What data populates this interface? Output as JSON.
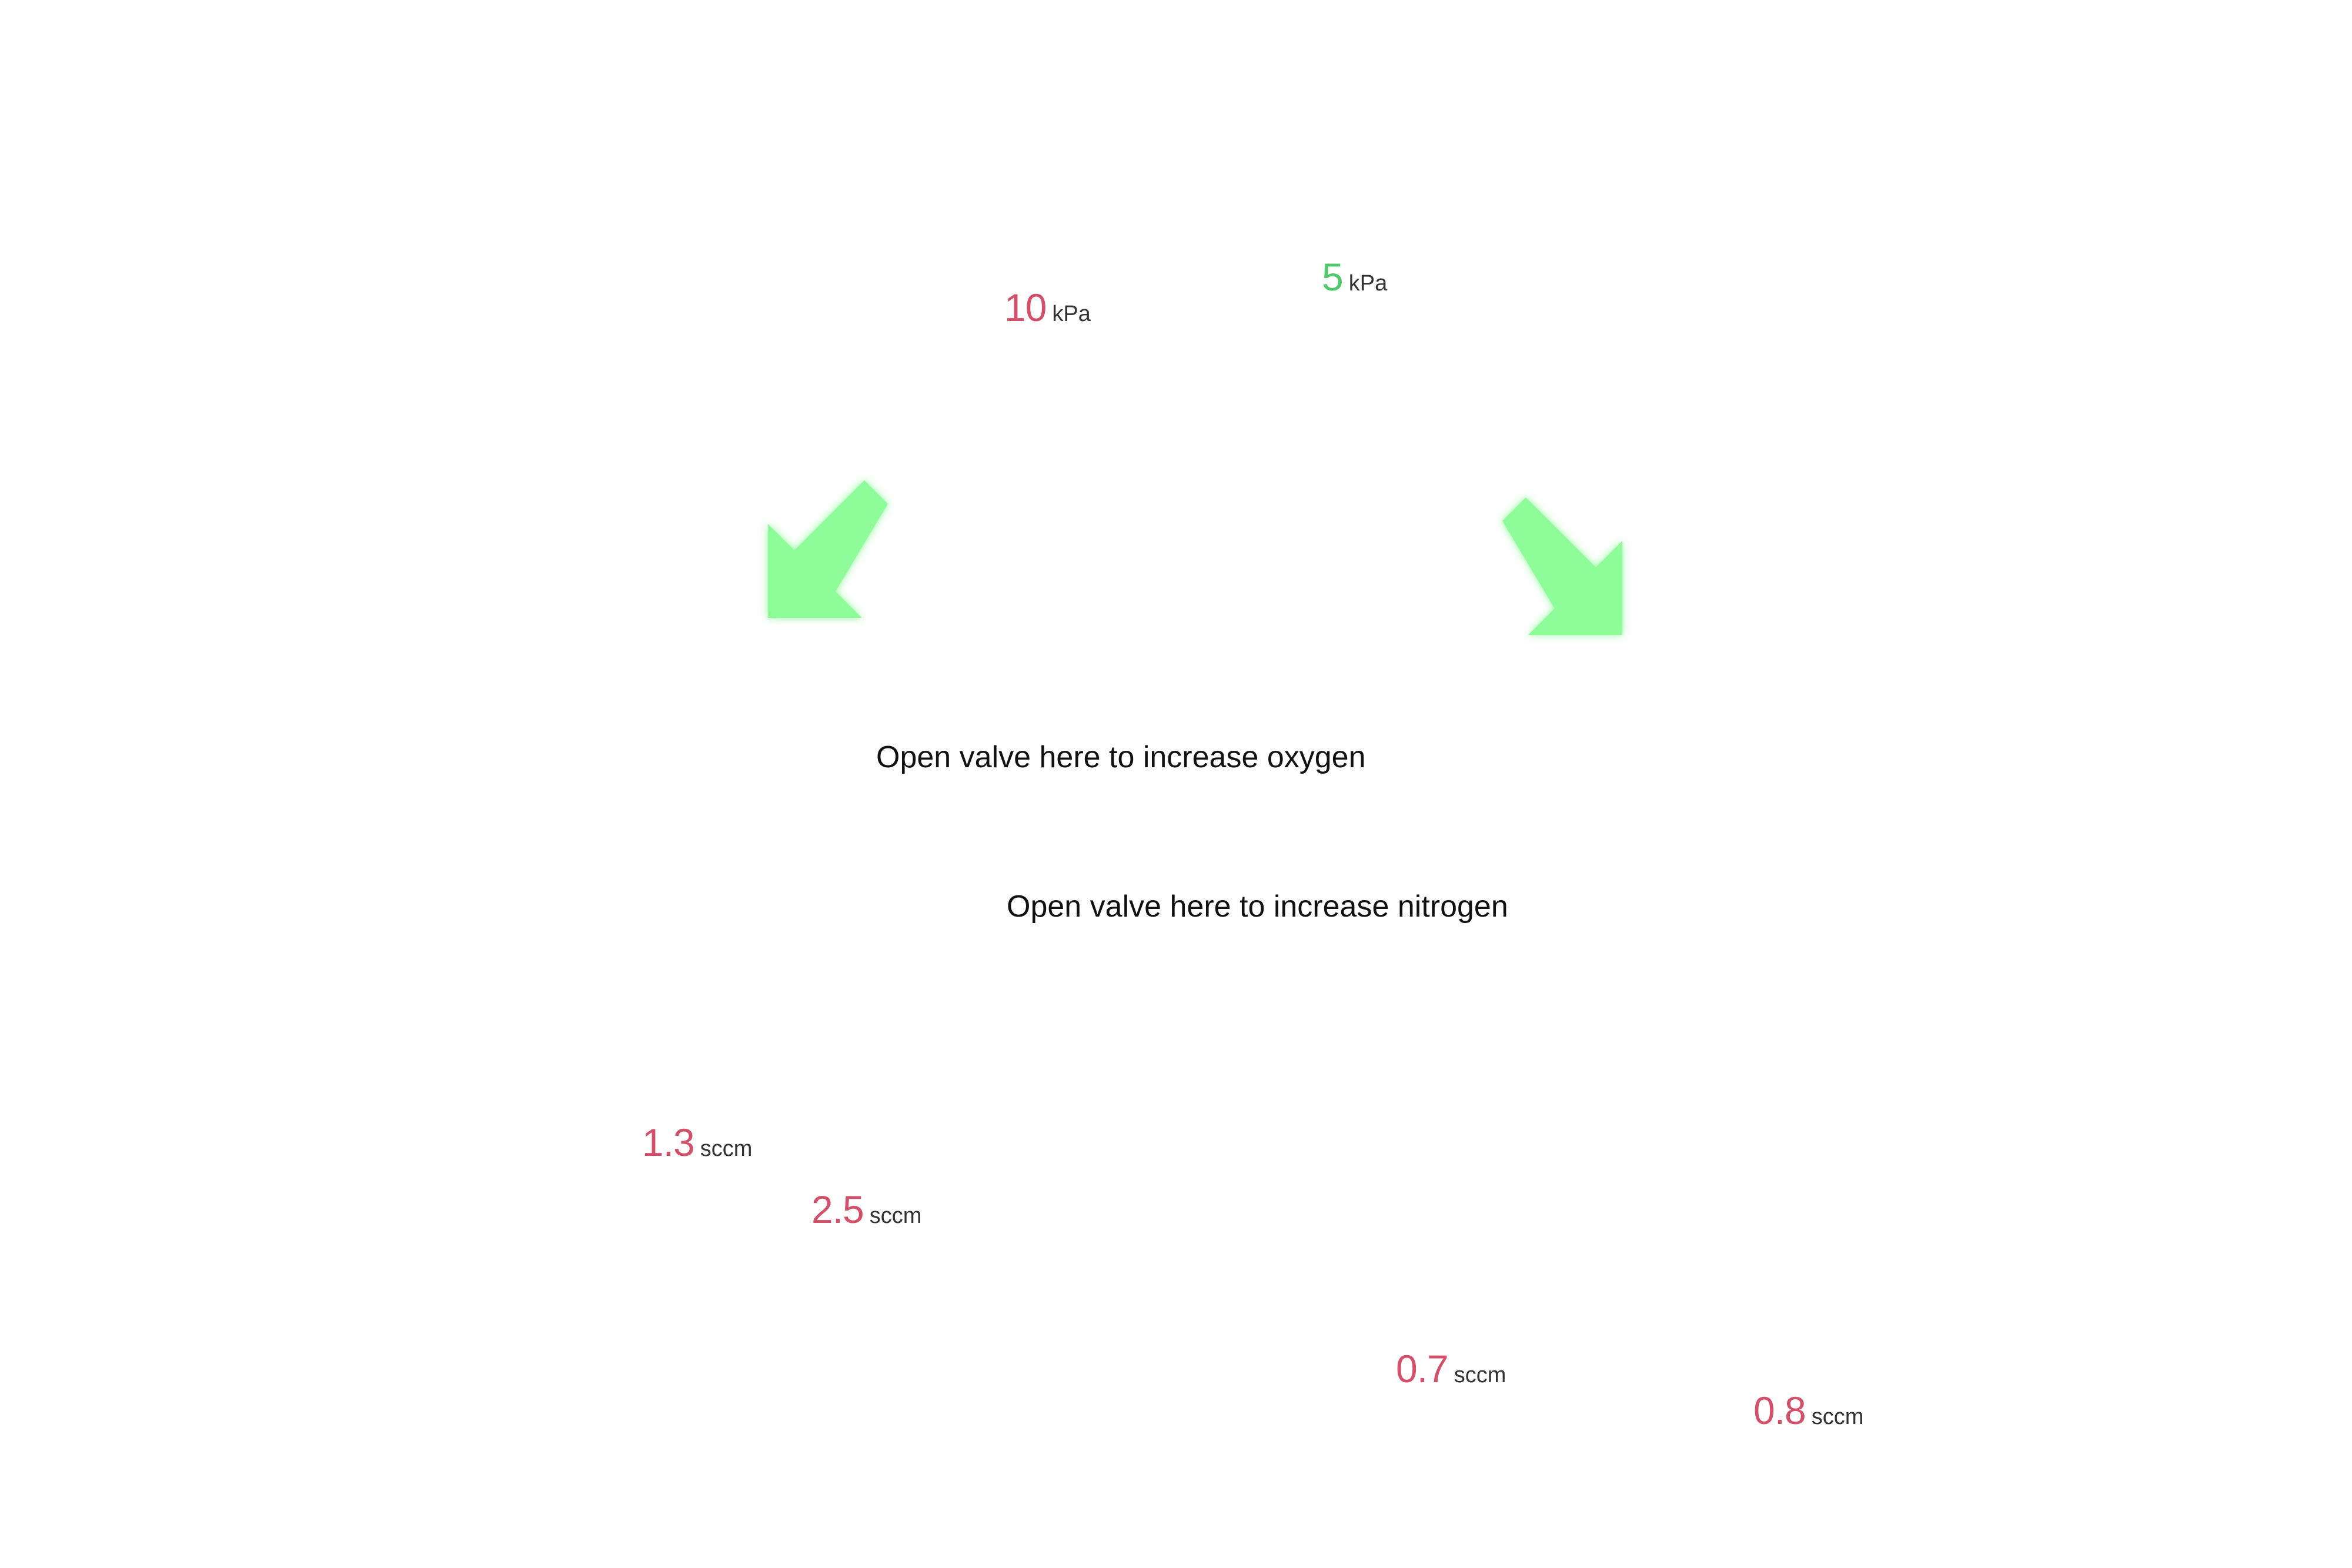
{
  "pressure_readouts": [
    {
      "value": "10",
      "unit": "kPa",
      "status_color": "#d4506a"
    },
    {
      "value": "5",
      "unit": "kPa",
      "status_color": "#4fc96a"
    }
  ],
  "flow_readouts": [
    {
      "value": "1.3",
      "unit": "sccm",
      "status_color": "#d4506a"
    },
    {
      "value": "2.5",
      "unit": "sccm",
      "status_color": "#d4506a"
    },
    {
      "value": "0.7",
      "unit": "sccm",
      "status_color": "#d4506a"
    },
    {
      "value": "0.8",
      "unit": "sccm",
      "status_color": "#d4506a"
    }
  ],
  "instructions": {
    "oxygen": "Open valve here to increase oxygen",
    "nitrogen": "Open valve here to increase nitrogen"
  },
  "arrows": {
    "left": {
      "icon": "arrow-down-left-icon",
      "color": "#8ffc9a"
    },
    "right": {
      "icon": "arrow-down-right-icon",
      "color": "#8ffc9a"
    }
  }
}
